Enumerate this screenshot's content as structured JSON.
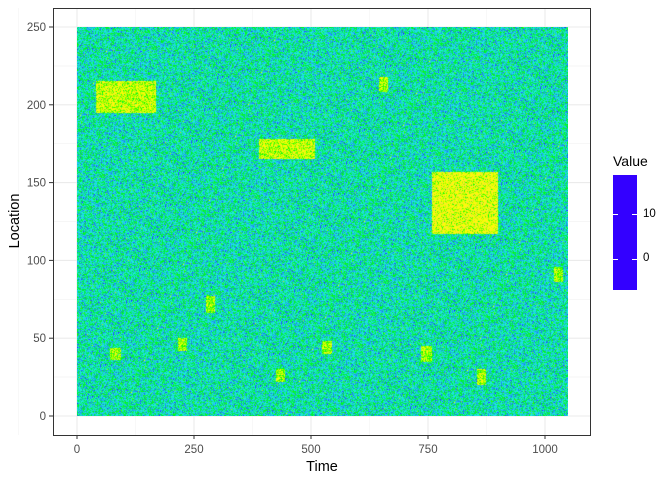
{
  "chart_data": {
    "type": "heatmap",
    "xlabel": "Time",
    "ylabel": "Location",
    "xlim": [
      0,
      1050
    ],
    "ylim": [
      0,
      250
    ],
    "x_ticks": [
      0,
      250,
      500,
      750,
      1000
    ],
    "y_ticks": [
      0,
      50,
      100,
      150,
      200,
      250
    ],
    "grid": true,
    "legend": {
      "title": "Value",
      "position": "right",
      "ticks": [
        0,
        10
      ],
      "range": [
        -7,
        19
      ]
    },
    "colorscale": [
      {
        "value": -7,
        "color": "#3300ff"
      },
      {
        "value": -3,
        "color": "#1f6cff"
      },
      {
        "value": 0,
        "color": "#22e8f0"
      },
      {
        "value": 3,
        "color": "#00e84a"
      },
      {
        "value": 5,
        "color": "#00ff00"
      },
      {
        "value": 10,
        "color": "#ffff00"
      },
      {
        "value": 15,
        "color": "#ffd84a"
      },
      {
        "value": 19,
        "color": "#ffdcae"
      }
    ],
    "background": {
      "mean": 1,
      "sd": 2.2
    },
    "hotspots": [
      {
        "time": [
          40,
          170
        ],
        "location": [
          195,
          215
        ],
        "mean": 9
      },
      {
        "time": [
          390,
          510
        ],
        "location": [
          165,
          178
        ],
        "mean": 9
      },
      {
        "time": [
          760,
          900
        ],
        "location": [
          117,
          157
        ],
        "mean": 10
      },
      {
        "time": [
          645,
          665
        ],
        "location": [
          208,
          218
        ],
        "mean": 8
      },
      {
        "time": [
          1020,
          1040
        ],
        "location": [
          86,
          96
        ],
        "mean": 8
      },
      {
        "time": [
          275,
          295
        ],
        "location": [
          66,
          77
        ],
        "mean": 8
      },
      {
        "time": [
          70,
          95
        ],
        "location": [
          36,
          44
        ],
        "mean": 8
      },
      {
        "time": [
          215,
          235
        ],
        "location": [
          42,
          50
        ],
        "mean": 8
      },
      {
        "time": [
          425,
          445
        ],
        "location": [
          22,
          30
        ],
        "mean": 8
      },
      {
        "time": [
          525,
          545
        ],
        "location": [
          40,
          48
        ],
        "mean": 8
      },
      {
        "time": [
          735,
          760
        ],
        "location": [
          35,
          45
        ],
        "mean": 8
      },
      {
        "time": [
          855,
          875
        ],
        "location": [
          20,
          30
        ],
        "mean": 8
      }
    ]
  }
}
